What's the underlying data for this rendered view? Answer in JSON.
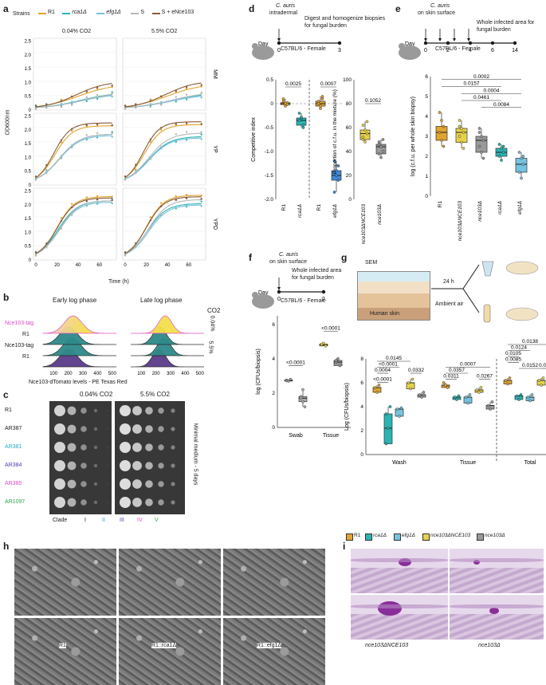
{
  "panels": {
    "a": {
      "label": "a",
      "legend_title": "Strains",
      "strains": [
        {
          "name": "R1",
          "color": "#e0a431"
        },
        {
          "name": "rca1Δ",
          "color": "#2bb3b3"
        },
        {
          "name": "efg1Δ",
          "color": "#77c3e0"
        },
        {
          "name": "S",
          "color": "#b5b5b5"
        },
        {
          "name": "S + eNce103",
          "color": "#8a5a3a"
        }
      ],
      "col_titles": [
        "0.04% CO2",
        "5.5% CO2"
      ],
      "row_labels": [
        "MM",
        "YP",
        "YPD"
      ],
      "y_ticks": [
        "2.5",
        "2.0",
        "1.5",
        "1.0",
        "0.5",
        "0"
      ],
      "x_ticks": [
        "0",
        "20",
        "40",
        "60"
      ],
      "ylabel": "OD600nm",
      "xlabel": "Time (h)"
    },
    "b": {
      "label": "b",
      "titles": [
        "Early log phase",
        "Late log phase"
      ],
      "co2_title": "CO2",
      "rows": [
        "Nce103-tag",
        "R1",
        "Nce103-tag",
        "R1"
      ],
      "co2_levels": [
        "0.04%",
        "5.5%"
      ],
      "x_ticks": [
        "100",
        "200",
        "300",
        "400",
        "500"
      ],
      "xlabel": "Nce103-dTomato levels - PE Texas Red"
    },
    "c": {
      "label": "c",
      "col_titles": [
        "0.04% CO2",
        "5.5% CO2"
      ],
      "strains": [
        {
          "name": "R1",
          "color": "#1a1a1a"
        },
        {
          "name": "AR387",
          "color": "#1a1a1a"
        },
        {
          "name": "AR381",
          "color": "#2aa6c8"
        },
        {
          "name": "AR384",
          "color": "#4a3fb0"
        },
        {
          "name": "AR385",
          "color": "#e048c8"
        },
        {
          "name": "AR1097",
          "color": "#2ea84a"
        }
      ],
      "side_label": "Minimal medium - 5 days",
      "clade_label": "Clade",
      "clades": [
        {
          "name": "I",
          "color": "#1a1a1a"
        },
        {
          "name": "II",
          "color": "#2aa6c8"
        },
        {
          "name": "III",
          "color": "#4a3fb0"
        },
        {
          "name": "IV",
          "color": "#e048c8"
        },
        {
          "name": "V",
          "color": "#2ea84a"
        }
      ]
    },
    "d": {
      "label": "d",
      "organism": "C. auris",
      "route": "intradermal",
      "protocol": "Digest and homogenize biopsies for fungal burden",
      "day_label": "Day",
      "days": [
        "0",
        "3"
      ],
      "mouse": "C57BL/6 - Female",
      "left_ylabel": "Competitive index",
      "left_yticks": [
        "0.5",
        "0",
        "-0.5",
        "-1.0",
        "-1.5",
        "-2.0"
      ],
      "left_x": [
        "R1",
        "rca1Δ",
        "R1",
        "efg1Δ"
      ],
      "left_p": [
        "0.0025",
        "0.0007"
      ],
      "right_ylabel": "Proportion of c.f.u. in the mixture (%)",
      "right_yticks": [
        "100",
        "80",
        "60",
        "40",
        "20",
        "0"
      ],
      "right_x": [
        "nce103ΔNCE103",
        "nce103Δ"
      ],
      "right_p": [
        "0.1052"
      ]
    },
    "e": {
      "label": "e",
      "organism": "C. auris",
      "route": "on skin surface",
      "protocol": "Whole infected area for fungal burden",
      "day_label": "Day",
      "days": [
        "0",
        "2",
        "4",
        "6",
        "14"
      ],
      "mouse": "C57BL/6 - Female",
      "ylabel": "log (c.f.u. per whole skin biopsy)",
      "yticks": [
        "6",
        "5",
        "4",
        "3",
        "2",
        "1",
        "0"
      ],
      "x": [
        "R1",
        "nce103ΔNCE103",
        "nce103Δ",
        "rca1Δ",
        "efg1Δ"
      ],
      "p": [
        "0.0002",
        "0.0157",
        "0.0004",
        "0.0461",
        "0.0084"
      ]
    },
    "f": {
      "label": "f",
      "organism": "C. auris",
      "route": "on skin surface",
      "protocol": "Whole infected area for fungal burden",
      "day_label": "Day",
      "days": [
        "0",
        "2"
      ],
      "mouse": "C57BL/6 - Female",
      "ylabel": "log (CFUs/biopsis)",
      "yticks": [
        "6",
        "4",
        "2",
        "0"
      ],
      "x": [
        "Swab",
        "Tissue"
      ],
      "p": [
        "<0.0001",
        "<0.0001"
      ]
    },
    "g": {
      "label": "g",
      "sem_label": "SEM",
      "skin_label": "Human skin",
      "time_label": "24 h",
      "air_label": "Ambient air",
      "ylabel": "Log (CFUs/biopsis)",
      "yticks": [
        "8",
        "6",
        "4",
        "2",
        "0"
      ],
      "groups": [
        "Wash",
        "Tissue",
        "Total"
      ],
      "p_wash": [
        "0.0145",
        "<0.0001",
        "0.0004",
        "0.0332",
        "<0.0001"
      ],
      "p_tissue": [
        "0.0007",
        "0.0357",
        "0.0311",
        "0.0267"
      ],
      "p_total": [
        "0.0138",
        "0.0124",
        "0.0105",
        "0.0085",
        "0.0152",
        "0.0202"
      ],
      "legend": [
        {
          "name": "R1",
          "color": "#e0a431"
        },
        {
          "name": "rca1Δ",
          "color": "#2bb3b3"
        },
        {
          "name": "efg1Δ",
          "color": "#77c3e0"
        },
        {
          "name": "nce103ΔNCE103",
          "color": "#e6d24a"
        },
        {
          "name": "nce103Δ",
          "color": "#9a9a9a"
        }
      ]
    },
    "h": {
      "label": "h",
      "captions": [
        "R1",
        "R1::rca1Δ",
        "R1::efg1Δ"
      ]
    },
    "i": {
      "label": "i",
      "captions": [
        "nce103ΔNCE103",
        "nce103Δ"
      ]
    }
  }
}
